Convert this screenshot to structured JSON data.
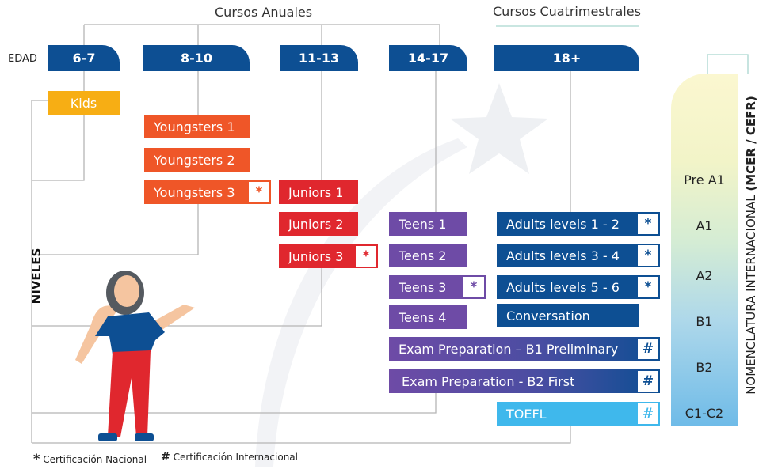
{
  "headers": {
    "anuales": "Cursos Anuales",
    "cuatrimestrales": "Cursos Cuatrimestrales"
  },
  "edad_label": "EDAD",
  "ages": [
    "6-7",
    "8-10",
    "11-13",
    "14-17",
    "18+"
  ],
  "niveles_label": "NIVELES",
  "courses": {
    "kids": "Kids",
    "youngsters1": "Youngsters 1",
    "youngsters2": "Youngsters 2",
    "youngsters3": "Youngsters 3",
    "juniors1": "Juniors 1",
    "juniors2": "Juniors 2",
    "juniors3": "Juniors 3",
    "teens1": "Teens 1",
    "teens2": "Teens 2",
    "teens3": "Teens 3",
    "teens4": "Teens 4",
    "adults12": "Adults levels 1 - 2",
    "adults34": "Adults levels 3 - 4",
    "adults56": "Adults levels 5 - 6",
    "conversation": "Conversation",
    "examb1": "Exam Preparation – B1 Preliminary",
    "examb2": "Exam Preparation  - B2 First",
    "toefl": "TOEFL"
  },
  "symbols": {
    "nacional": "*",
    "internacional": "#"
  },
  "mcer_title_regular": "NOMENCLATURA INTERNACIONAL ",
  "mcer_title_bold": "(MCER / CEFR)",
  "levels": [
    "Pre A1",
    "A1",
    "A2",
    "B1",
    "B2",
    "C1-C2"
  ],
  "legend": {
    "nacional": "Certificación Nacional",
    "internacional": "Certificación Internacional"
  },
  "colors": {
    "navy": "#0d4f93",
    "kids": "#f7ae14",
    "youngsters": "#ef5628",
    "juniors": "#e0272e",
    "teens": "#6e4ba6",
    "toefl": "#3fb8ec",
    "line": "#b5b5b5"
  }
}
